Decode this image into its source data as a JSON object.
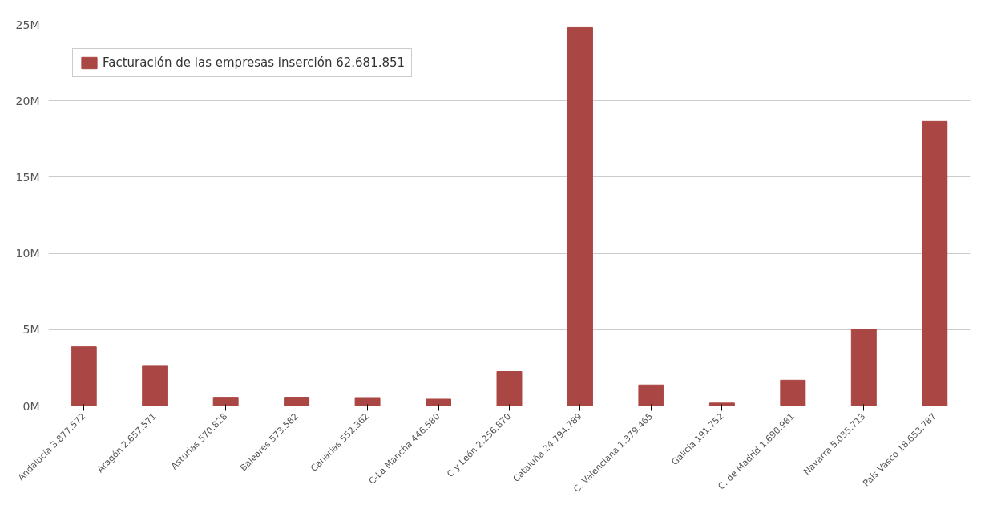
{
  "chart_data": {
    "type": "bar",
    "categories": [
      "Andalucía 3.877.572",
      "Aragón 2.657.571",
      "Asturias 570.828",
      "Baleares 573.582",
      "Canarias 552.362",
      "C-La Mancha 446.580",
      "C y León 2.256.870",
      "Cataluña 24.794.789",
      "C. Valenciana 1.379.465",
      "Galicia 191.752",
      "C. de Madrid 1.690.981",
      "Navarra 5.035.713",
      "País Vasco 18.653.787"
    ],
    "series": [
      {
        "name": "Facturación de las empresas inserción 62.681.851",
        "color": "#aa4643",
        "values": [
          3877572,
          2657571,
          570828,
          573582,
          552362,
          446580,
          2256870,
          24794789,
          1379465,
          191752,
          1690981,
          5035713,
          18653787
        ]
      }
    ],
    "ylim": [
      0,
      25000000
    ],
    "yticks": [
      {
        "value": 0,
        "label": "0M"
      },
      {
        "value": 5000000,
        "label": "5M"
      },
      {
        "value": 10000000,
        "label": "10M"
      },
      {
        "value": 15000000,
        "label": "15M"
      },
      {
        "value": 20000000,
        "label": "20M"
      },
      {
        "value": 25000000,
        "label": "25M"
      }
    ],
    "grid": "y",
    "legend": "top left"
  }
}
